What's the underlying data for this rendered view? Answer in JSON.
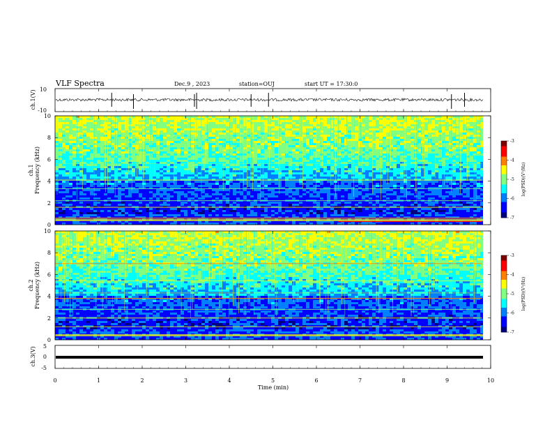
{
  "header": {
    "title": "VLF Spectra",
    "date": "Dec.9 , 2023",
    "station": "station=OUJ",
    "start": "start UT = 17:30:0"
  },
  "chart_data": [
    {
      "type": "line",
      "panel": "ch1-waveform",
      "ylabel": "ch.1(V)",
      "yticks": [
        "10",
        "-10"
      ],
      "ylim": [
        -10,
        10
      ],
      "xlim": [
        0,
        10
      ],
      "series": [
        {
          "values_note": "",
          "baseline": 0,
          "spikes_min": [
            1.8,
            1.3,
            3.2,
            3.25,
            4.5,
            4.9,
            9.1,
            9.4
          ]
        }
      ]
    },
    {
      "type": "heatmap",
      "panel": "ch1-spectrogram",
      "ylabel_top": "ch.1",
      "ylabel": "Frequency (kHz)",
      "yticks": [
        "0",
        "2",
        "4",
        "6",
        "8",
        "10"
      ],
      "ylim": [
        0,
        10
      ],
      "xlim": [
        0,
        10
      ],
      "colorbar": {
        "label": "log(PSD)(V²/Hz)",
        "ticks": [
          "-3",
          "-4",
          "-5",
          "-6",
          "-7"
        ],
        "range": [
          -7,
          -3
        ]
      }
    },
    {
      "type": "heatmap",
      "panel": "ch2-spectrogram",
      "ylabel_top": "ch.2",
      "ylabel": "Frequency (kHz)",
      "yticks": [
        "0",
        "2",
        "4",
        "6",
        "8",
        "10"
      ],
      "ylim": [
        0,
        10
      ],
      "xlim": [
        0,
        10
      ],
      "colorbar": {
        "label": "log(PSD)(V²/Hz)",
        "ticks": [
          "-3",
          "-4",
          "-5",
          "-6",
          "-7"
        ],
        "range": [
          -7,
          -3
        ]
      }
    },
    {
      "type": "line",
      "panel": "ch3-waveform",
      "ylabel": "ch.3(V)",
      "yticks": [
        "5",
        "0",
        "-5"
      ],
      "ylim": [
        -5,
        5
      ],
      "xlim": [
        0,
        10
      ],
      "series": [
        {
          "constant": -1
        }
      ]
    }
  ],
  "xaxis": {
    "label": "Time (min)",
    "ticks": [
      "0",
      "1",
      "2",
      "3",
      "4",
      "5",
      "6",
      "7",
      "8",
      "9",
      "10"
    ]
  },
  "colors": {
    "cmap": [
      "#00007f",
      "#0000ff",
      "#0080ff",
      "#00ffff",
      "#80ff80",
      "#ffff00",
      "#ff8000",
      "#ff0000",
      "#7f0000"
    ]
  }
}
